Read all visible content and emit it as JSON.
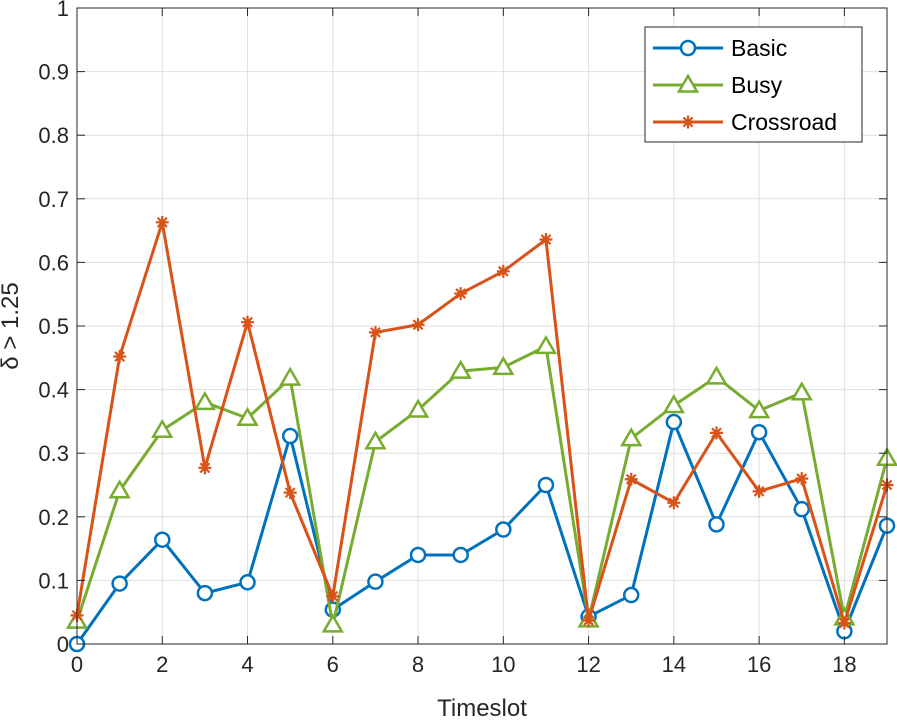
{
  "chart_data": {
    "type": "line",
    "title": "",
    "xlabel": "Timeslot",
    "ylabel": "δ > 1.25",
    "xlim": [
      0,
      19
    ],
    "ylim": [
      0,
      1
    ],
    "xticks": [
      0,
      2,
      4,
      6,
      8,
      10,
      12,
      14,
      16,
      18
    ],
    "yticks": [
      0,
      0.1,
      0.2,
      0.3,
      0.4,
      0.5,
      0.6,
      0.7,
      0.8,
      0.9,
      1
    ],
    "grid": true,
    "legend_position": "top-right",
    "x": [
      0,
      1,
      2,
      3,
      4,
      5,
      6,
      7,
      8,
      9,
      10,
      11,
      12,
      13,
      14,
      15,
      16,
      17,
      18,
      19
    ],
    "series": [
      {
        "name": "Basic",
        "color": "#0072bd",
        "marker": "circle",
        "values": [
          0.0,
          0.095,
          0.164,
          0.08,
          0.097,
          0.327,
          0.054,
          0.098,
          0.14,
          0.14,
          0.18,
          0.25,
          0.043,
          0.077,
          0.349,
          0.188,
          0.333,
          0.212,
          0.02,
          0.186
        ]
      },
      {
        "name": "Busy",
        "color": "#77ac30",
        "marker": "triangle",
        "values": [
          0.036,
          0.241,
          0.336,
          0.38,
          0.355,
          0.418,
          0.03,
          0.318,
          0.368,
          0.429,
          0.435,
          0.468,
          0.038,
          0.323,
          0.375,
          0.42,
          0.367,
          0.395,
          0.041,
          0.292
        ]
      },
      {
        "name": "Crossroad",
        "color": "#d95319",
        "marker": "asterisk",
        "values": [
          0.045,
          0.452,
          0.663,
          0.277,
          0.506,
          0.238,
          0.075,
          0.49,
          0.502,
          0.551,
          0.586,
          0.636,
          0.037,
          0.259,
          0.222,
          0.332,
          0.24,
          0.26,
          0.033,
          0.25
        ]
      }
    ]
  }
}
